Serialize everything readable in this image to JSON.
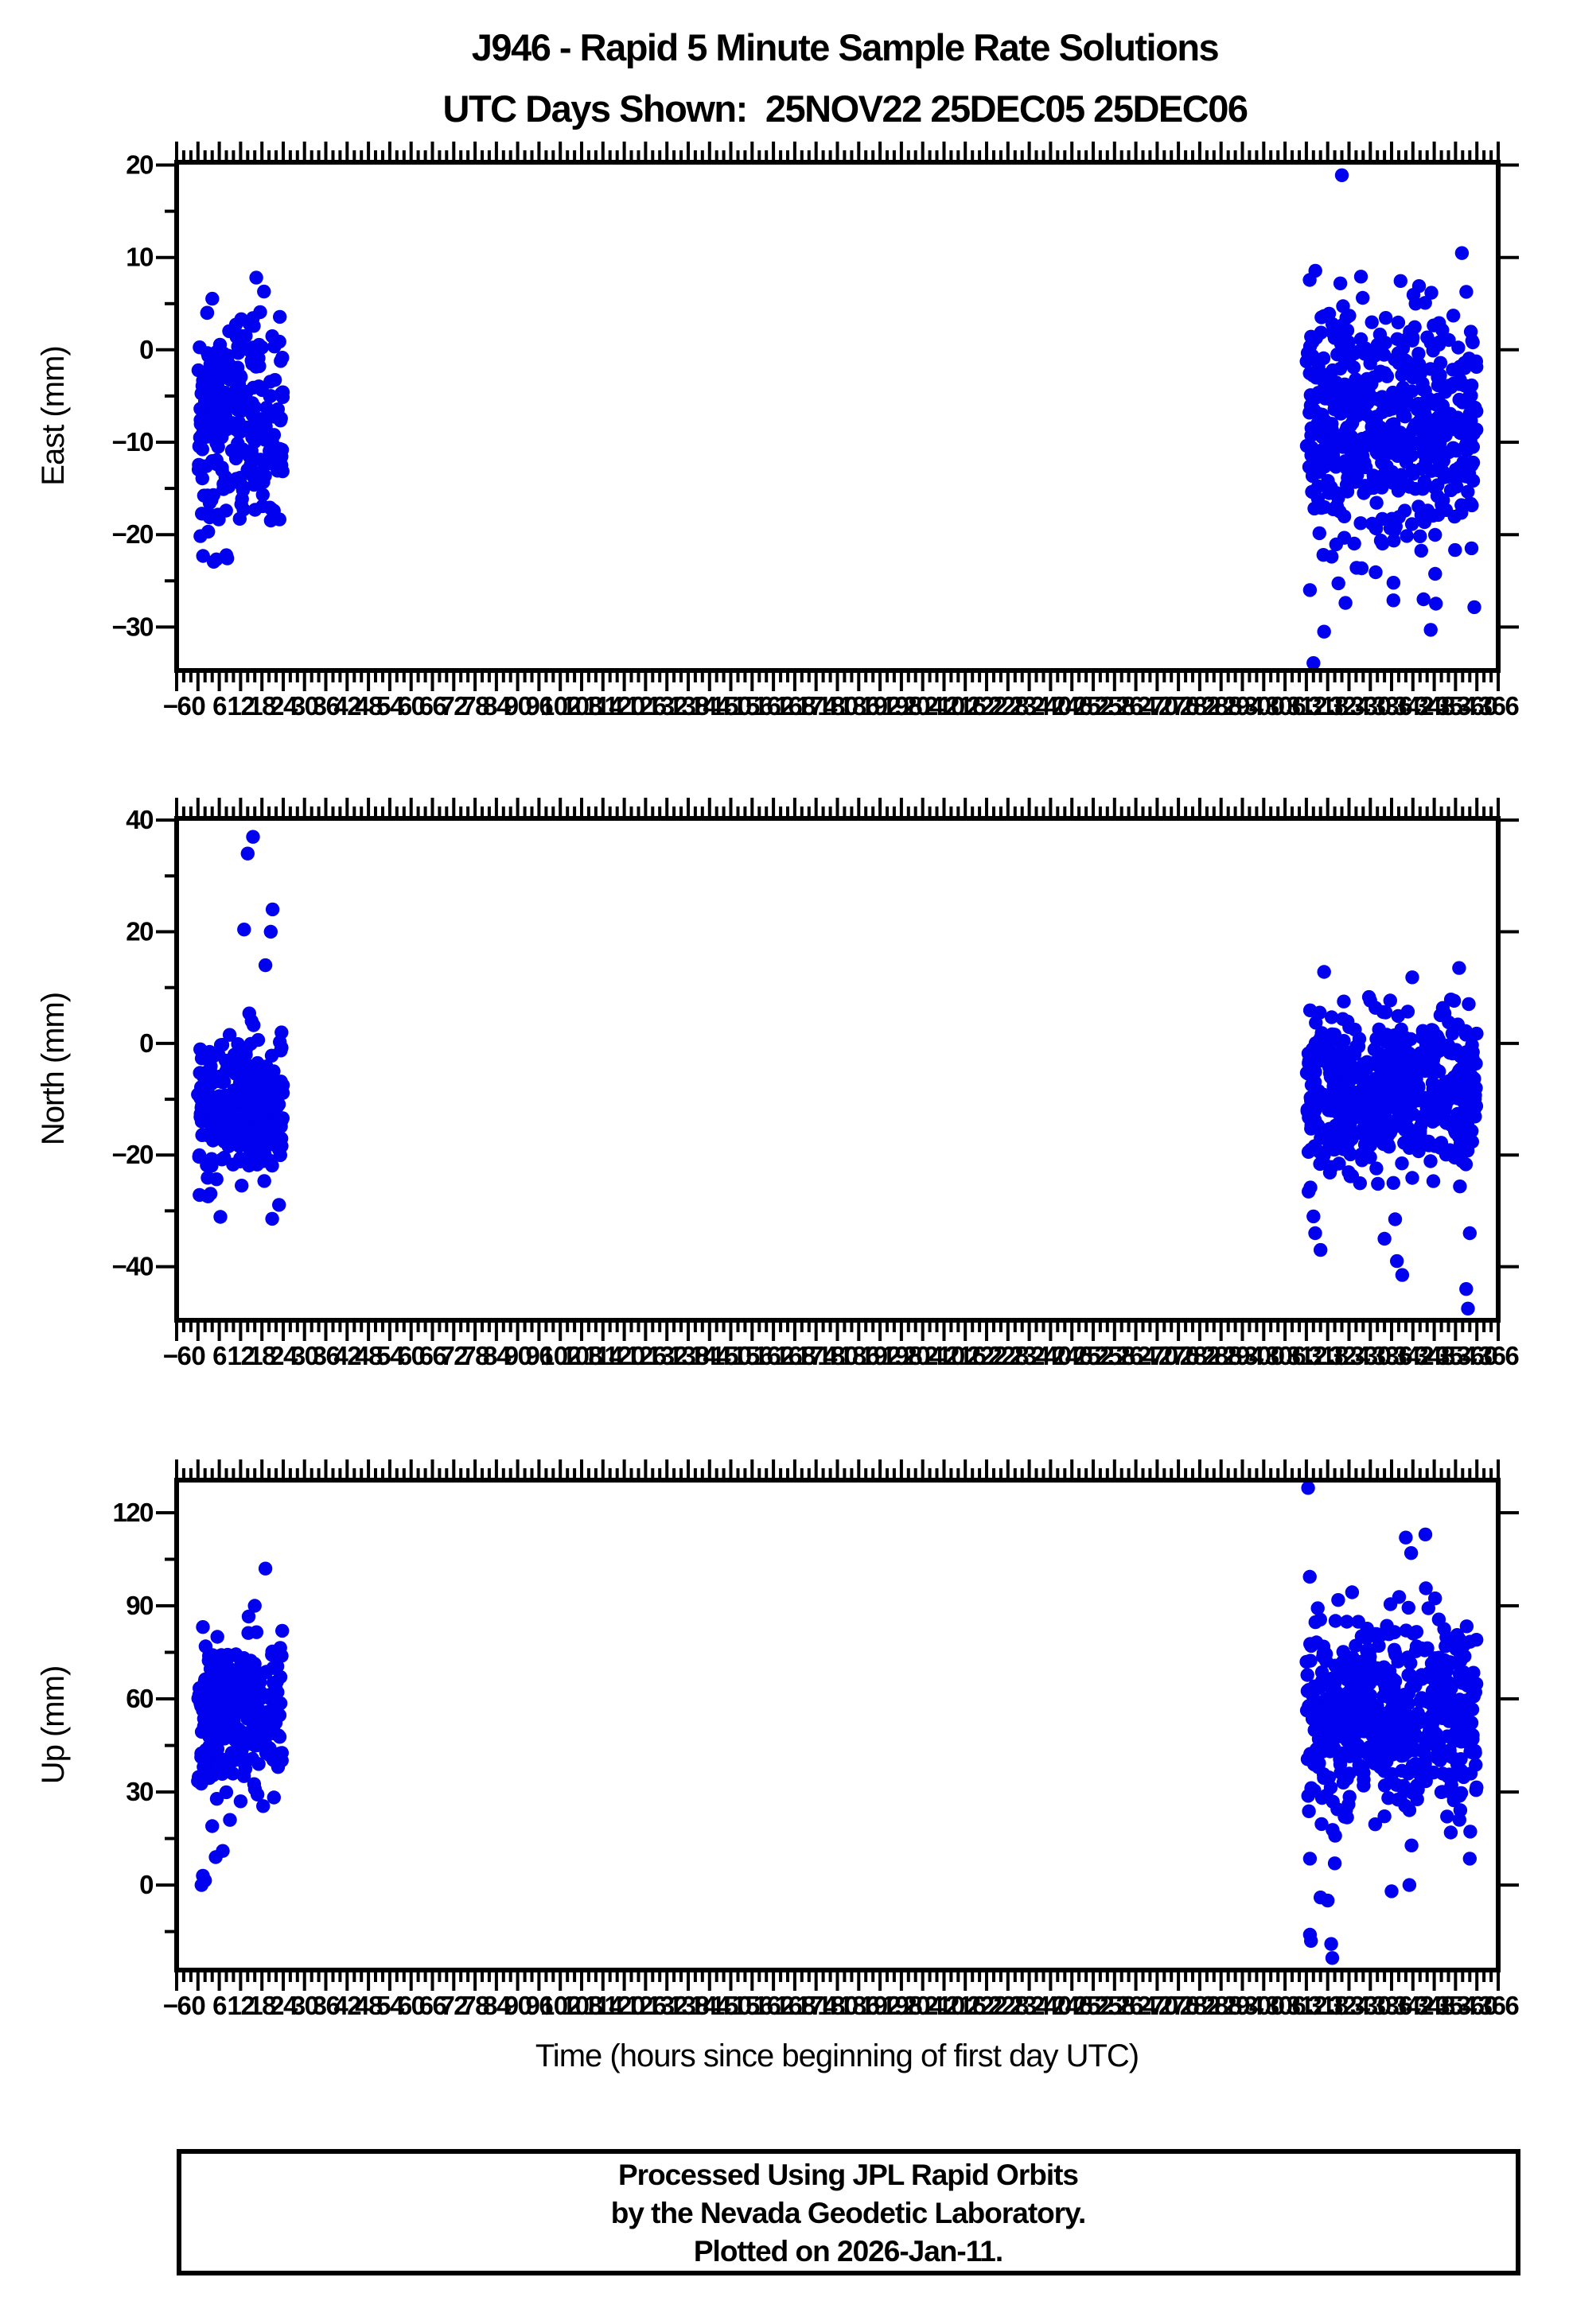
{
  "title": {
    "line1": "J946 - Rapid 5 Minute Sample Rate Solutions",
    "line2": "UTC Days Shown:  25NOV22 25DEC05 25DEC06"
  },
  "xaxis": {
    "title": "Time (hours since beginning of first day UTC)",
    "min": -6,
    "max": 366,
    "major_tick": 6,
    "minor_tick": 2,
    "label_step": 6
  },
  "footer": {
    "line1": "Processed Using JPL Rapid Orbits",
    "line2": "by the Nevada Geodetic Laboratory.",
    "line3": "Plotted on 2026-Jan-11."
  },
  "style": {
    "dot_color": "#0101EF",
    "axis_color": "#000000",
    "background": "#FFFFFF",
    "dot_radius": 8.7
  },
  "chart_data": [
    {
      "type": "scatter",
      "ylabel": "East (mm)",
      "ylim": [
        -34.7,
        20.3
      ],
      "ytick_major": 10,
      "ytick_minor": 5,
      "xlim": [
        -6,
        366
      ],
      "grid": false,
      "legend": false,
      "clusters": [
        {
          "name": "day 25NOV22",
          "x_hours": [
            0,
            24
          ],
          "n": 270,
          "mean": -7.5,
          "std": 6.0,
          "clip": [
            -25.0,
            9.5
          ]
        },
        {
          "name": "days 25DEC05-25DEC06",
          "x_hours": [
            312,
            360
          ],
          "n": 540,
          "mean": -7.5,
          "std": 6.8,
          "clip": [
            -28.0,
            10.5
          ]
        }
      ],
      "outliers": [
        [
          322,
          18.9
        ],
        [
          314,
          -33.9
        ],
        [
          317,
          -30.5
        ],
        [
          347,
          -30.3
        ],
        [
          313,
          -26
        ],
        [
          345,
          -27
        ]
      ]
    },
    {
      "type": "scatter",
      "ylabel": "North (mm)",
      "ylim": [
        -49.6,
        40.3
      ],
      "ytick_major": 20,
      "ytick_minor": 10,
      "xlim": [
        -6,
        366
      ],
      "grid": false,
      "legend": false,
      "clusters": [
        {
          "name": "day 25NOV22",
          "x_hours": [
            0,
            24
          ],
          "n": 270,
          "mean": -11.0,
          "std": 6.5,
          "clip": [
            -35.0,
            6.0
          ]
        },
        {
          "name": "days 25DEC05-25DEC06",
          "x_hours": [
            312,
            360
          ],
          "n": 540,
          "mean": -9.0,
          "std": 7.5,
          "clip": [
            -28.0,
            12.5
          ]
        }
      ],
      "outliers": [
        [
          14,
          34
        ],
        [
          15.5,
          37
        ],
        [
          19,
          14
        ],
        [
          20.5,
          20
        ],
        [
          21,
          24
        ],
        [
          13,
          20.4
        ],
        [
          314,
          -31
        ],
        [
          314.5,
          -34
        ],
        [
          316,
          -37
        ],
        [
          334,
          -35
        ],
        [
          337,
          -31.5
        ],
        [
          337.5,
          -39
        ],
        [
          339,
          -41.5
        ],
        [
          357,
          -44
        ],
        [
          357.5,
          -47.5
        ],
        [
          358,
          -34
        ],
        [
          317,
          12.8
        ],
        [
          355,
          13.5
        ]
      ]
    },
    {
      "type": "scatter",
      "ylabel": "Up (mm)",
      "ylim": [
        -27.4,
        130.5
      ],
      "ytick_major": 30,
      "ytick_minor": 15,
      "xlim": [
        -6,
        366
      ],
      "grid": false,
      "legend": false,
      "clusters": [
        {
          "name": "day 25NOV22",
          "x_hours": [
            0,
            24
          ],
          "n": 270,
          "mean": 55.0,
          "std": 13.0,
          "clip": [
            24.0,
            88.0
          ]
        },
        {
          "name": "days 25DEC05-25DEC06",
          "x_hours": [
            312,
            360
          ],
          "n": 540,
          "mean": 54.0,
          "std": 16.0,
          "clip": [
            8.0,
            100.0
          ]
        }
      ],
      "outliers": [
        [
          1,
          0
        ],
        [
          1.4,
          3
        ],
        [
          2,
          1.5
        ],
        [
          5,
          9
        ],
        [
          7,
          11
        ],
        [
          4,
          19
        ],
        [
          9,
          21
        ],
        [
          12,
          27
        ],
        [
          19,
          102
        ],
        [
          16,
          90
        ],
        [
          312.5,
          128
        ],
        [
          313,
          -16
        ],
        [
          313.3,
          -18
        ],
        [
          319,
          -19
        ],
        [
          319.3,
          -23.5
        ],
        [
          316,
          -4
        ],
        [
          318,
          -5
        ],
        [
          336,
          -2
        ],
        [
          341,
          0
        ],
        [
          340,
          112
        ],
        [
          341.5,
          107
        ],
        [
          345.5,
          113
        ],
        [
          358,
          8.5
        ],
        [
          320,
          7
        ],
        [
          313,
          8.5
        ]
      ]
    }
  ]
}
